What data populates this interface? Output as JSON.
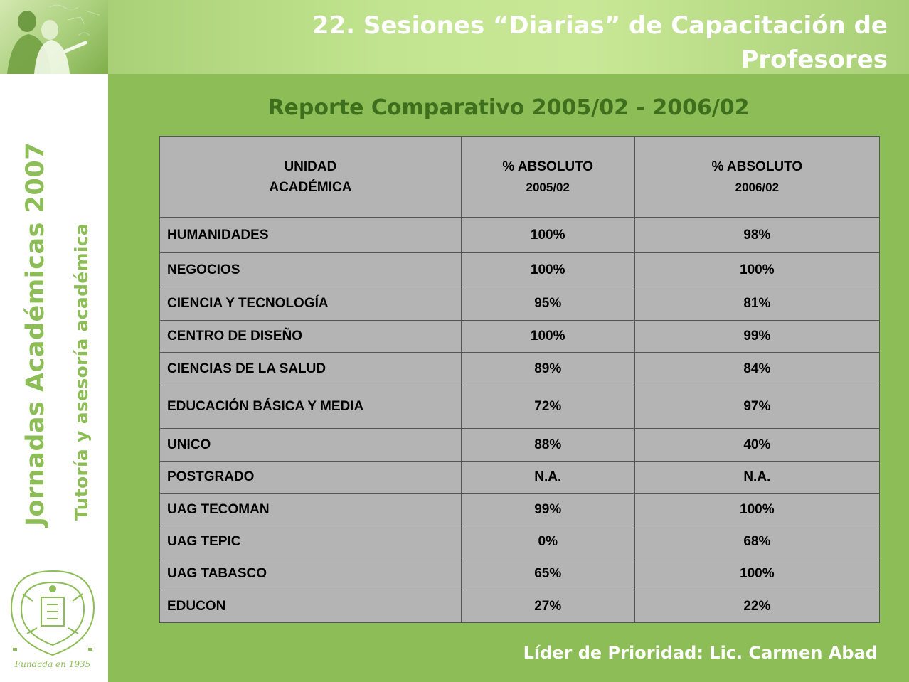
{
  "title": "22. Sesiones “Diarias” de Capacitación de Profesores",
  "subtitle": "Reporte Comparativo  2005/02  - 2006/02",
  "sidebar": {
    "title_main": "Jornadas Académicas 2007",
    "title_sub": "Tutoría y asesoría académica",
    "seal_text": "Fundada en 1935"
  },
  "table": {
    "headers": [
      {
        "line1": "UNIDAD",
        "line2": "ACADÉMICA"
      },
      {
        "line1": "% ABSOLUTO",
        "line2": "2005/02"
      },
      {
        "line1": "% ABSOLUTO",
        "line2": "2006/02"
      }
    ],
    "rows": [
      {
        "unidad": "HUMANIDADES",
        "abs_2005": "100%",
        "abs_2006": "98%"
      },
      {
        "unidad": "NEGOCIOS",
        "abs_2005": "100%",
        "abs_2006": "100%"
      },
      {
        "unidad": "CIENCIA Y TECNOLOGÍA",
        "abs_2005": "95%",
        "abs_2006": "81%"
      },
      {
        "unidad": "CENTRO DE DISEÑO",
        "abs_2005": "100%",
        "abs_2006": "99%"
      },
      {
        "unidad": "CIENCIAS DE LA SALUD",
        "abs_2005": "89%",
        "abs_2006": "84%"
      },
      {
        "unidad": "EDUCACIÓN BÁSICA Y MEDIA",
        "abs_2005": "72%",
        "abs_2006": "97%"
      },
      {
        "unidad": "UNICO",
        "abs_2005": "88%",
        "abs_2006": "40%"
      },
      {
        "unidad": "POSTGRADO",
        "abs_2005": "N.A.",
        "abs_2006": "N.A."
      },
      {
        "unidad": "UAG TECOMAN",
        "abs_2005": "99%",
        "abs_2006": "100%"
      },
      {
        "unidad": "UAG TEPIC",
        "abs_2005": "0%",
        "abs_2006": "68%"
      },
      {
        "unidad": "UAG TABASCO",
        "abs_2005": "65%",
        "abs_2006": "100%"
      },
      {
        "unidad": "EDUCON",
        "abs_2005": "27%",
        "abs_2006": "22%"
      }
    ]
  },
  "footer": "Líder de Prioridad: Lic. Carmen Abad",
  "colors": {
    "background": "#8dbd57",
    "header_band": "#c2e490",
    "table_cell": "#b4b4b4",
    "subtitle": "#3e6f1c"
  }
}
